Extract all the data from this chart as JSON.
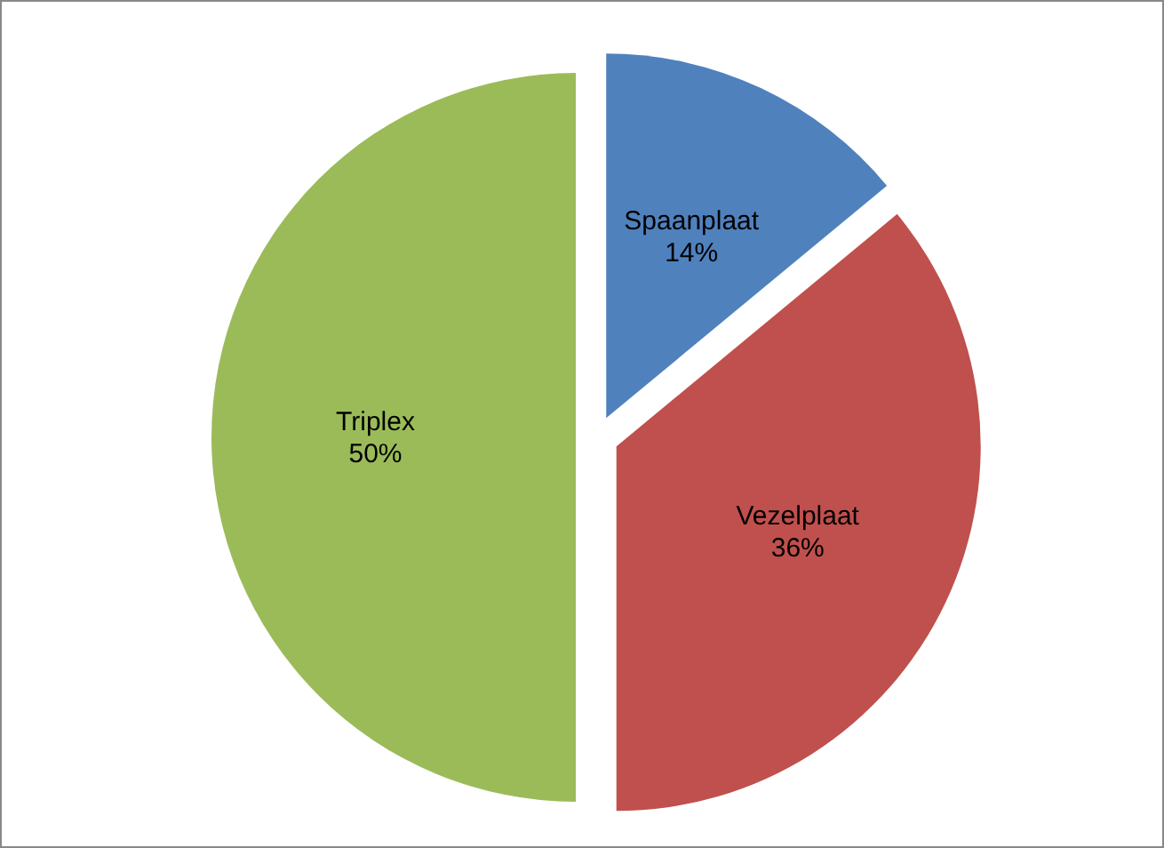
{
  "chart_data": {
    "type": "pie",
    "categories": [
      "Spaanplaat",
      "Vezelplaat",
      "Triplex"
    ],
    "values": [
      14,
      36,
      50
    ],
    "colors": [
      "#4f81bd",
      "#c0504d",
      "#9bbb59"
    ],
    "value_labels": [
      "14%",
      "36%",
      "50%"
    ]
  }
}
